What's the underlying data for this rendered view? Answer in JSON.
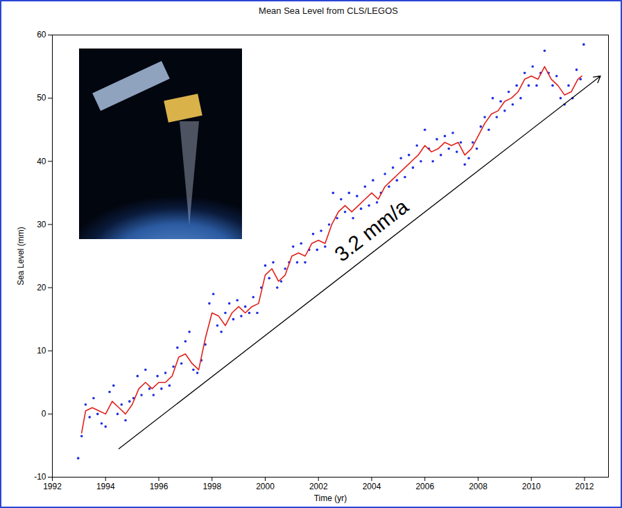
{
  "chart_data": {
    "type": "line",
    "title": "Mean Sea Level from CLS/LEGOS",
    "x_label": "Time (yr)",
    "y_label": "Sea Level (mm)",
    "xlim": [
      1992,
      2012.9
    ],
    "xticks": [
      1992,
      1994,
      1996,
      1998,
      2000,
      2002,
      2004,
      2006,
      2008,
      2010,
      2012
    ],
    "ylim": [
      -10,
      60
    ],
    "yticks": [
      -10,
      0,
      10,
      20,
      30,
      40,
      50,
      60
    ],
    "grid": false,
    "series": [
      {
        "type": "scatter",
        "marker": "dot",
        "color": "#1f2fe0",
        "x": [
          1992.97,
          1993.1,
          1993.25,
          1993.4,
          1993.55,
          1993.7,
          1993.85,
          1994.0,
          1994.15,
          1994.3,
          1994.45,
          1994.6,
          1994.75,
          1994.9,
          1995.05,
          1995.2,
          1995.35,
          1995.5,
          1995.65,
          1995.8,
          1995.95,
          1996.1,
          1996.25,
          1996.4,
          1996.55,
          1996.7,
          1996.85,
          1997.0,
          1997.15,
          1997.3,
          1997.45,
          1997.6,
          1997.75,
          1997.9,
          1998.05,
          1998.2,
          1998.35,
          1998.5,
          1998.65,
          1998.8,
          1998.95,
          1999.1,
          1999.25,
          1999.4,
          1999.55,
          1999.7,
          1999.85,
          2000.0,
          2000.15,
          2000.3,
          2000.45,
          2000.6,
          2000.75,
          2000.9,
          2001.05,
          2001.2,
          2001.35,
          2001.5,
          2001.65,
          2001.8,
          2001.95,
          2002.1,
          2002.25,
          2002.4,
          2002.55,
          2002.7,
          2002.85,
          2003.0,
          2003.15,
          2003.3,
          2003.45,
          2003.6,
          2003.75,
          2003.9,
          2004.05,
          2004.2,
          2004.35,
          2004.5,
          2004.65,
          2004.8,
          2004.95,
          2005.1,
          2005.25,
          2005.4,
          2005.55,
          2005.7,
          2005.85,
          2006.0,
          2006.15,
          2006.3,
          2006.45,
          2006.6,
          2006.75,
          2006.9,
          2007.05,
          2007.2,
          2007.35,
          2007.5,
          2007.65,
          2007.8,
          2007.95,
          2008.1,
          2008.25,
          2008.4,
          2008.55,
          2008.7,
          2008.85,
          2009.0,
          2009.15,
          2009.3,
          2009.45,
          2009.6,
          2009.75,
          2009.9,
          2010.05,
          2010.2,
          2010.35,
          2010.5,
          2010.65,
          2010.8,
          2010.95,
          2011.1,
          2011.25,
          2011.4,
          2011.55,
          2011.7,
          2011.85,
          2011.97
        ],
        "values": [
          -7,
          -3.5,
          1.5,
          -0.5,
          2.5,
          0,
          -1.5,
          -2,
          3.5,
          4.5,
          0,
          1.5,
          -1,
          2,
          2.5,
          6,
          3,
          7,
          4,
          3,
          6,
          4,
          6.5,
          4.5,
          7.5,
          10.5,
          8,
          11.5,
          13,
          7,
          6.5,
          8.5,
          11,
          17.5,
          19,
          14,
          13,
          16,
          17.5,
          15,
          18,
          15.5,
          17,
          16,
          18.5,
          16,
          20,
          23.5,
          21.5,
          24,
          20,
          21,
          23,
          24,
          26.5,
          24,
          27,
          24,
          26,
          28.5,
          26,
          29,
          26.5,
          30,
          35,
          31,
          34,
          32,
          35,
          31,
          34.5,
          32.5,
          36,
          33,
          37,
          33.5,
          35,
          38,
          36,
          39,
          37,
          40.5,
          37.5,
          41,
          39,
          42.5,
          40,
          45,
          42,
          40,
          43.5,
          41,
          44,
          42,
          44.5,
          41.5,
          43,
          39.5,
          40.5,
          43,
          42,
          45.5,
          47,
          45,
          50,
          47,
          49.5,
          48,
          51,
          49,
          52,
          50,
          54,
          52,
          55,
          52,
          54,
          57.5,
          54,
          52,
          53.5,
          50,
          49,
          52,
          50,
          54.5,
          53,
          58.5
        ]
      },
      {
        "type": "line",
        "line_style": "solid",
        "color": "#e0201a",
        "x": [
          1993.1,
          1993.25,
          1993.5,
          1993.75,
          1994.0,
          1994.25,
          1994.5,
          1994.75,
          1995.0,
          1995.25,
          1995.5,
          1995.75,
          1996.0,
          1996.25,
          1996.5,
          1996.75,
          1997.0,
          1997.25,
          1997.5,
          1997.75,
          1998.0,
          1998.25,
          1998.5,
          1998.75,
          1999.0,
          1999.25,
          1999.5,
          1999.75,
          2000.0,
          2000.25,
          2000.5,
          2000.75,
          2001.0,
          2001.25,
          2001.5,
          2001.75,
          2002.0,
          2002.25,
          2002.5,
          2002.75,
          2003.0,
          2003.25,
          2003.5,
          2003.75,
          2004.0,
          2004.25,
          2004.5,
          2004.75,
          2005.0,
          2005.25,
          2005.5,
          2005.75,
          2006.0,
          2006.25,
          2006.5,
          2006.75,
          2007.0,
          2007.25,
          2007.5,
          2007.75,
          2008.0,
          2008.25,
          2008.5,
          2008.75,
          2009.0,
          2009.25,
          2009.5,
          2009.75,
          2010.0,
          2010.25,
          2010.5,
          2010.75,
          2011.0,
          2011.25,
          2011.5,
          2011.75,
          2011.9
        ],
        "values": [
          -3,
          0.5,
          1,
          0.5,
          0,
          2,
          1,
          0,
          1.5,
          4,
          5,
          4,
          5,
          5,
          6,
          9,
          9.5,
          8,
          7,
          12,
          16,
          15.5,
          14,
          16,
          17,
          16,
          17,
          17.5,
          22,
          23,
          21,
          22,
          25,
          25.5,
          25,
          27,
          27.5,
          27,
          30,
          32,
          33,
          32,
          33,
          34,
          35,
          34,
          36,
          37,
          38,
          39,
          40,
          41,
          42.5,
          41.5,
          42,
          43,
          42.5,
          43,
          41,
          42,
          44,
          46,
          47.5,
          48,
          49.5,
          50,
          51,
          53,
          53.5,
          53,
          55,
          53,
          52,
          50.5,
          51,
          53,
          53.5
        ]
      }
    ],
    "annotations": [
      {
        "text": "3.2 mm/a",
        "x": 2004,
        "y": 29,
        "arrow": {
          "x": [
            1994.5,
            2012.6
          ],
          "y": [
            -5.5,
            53.5
          ]
        }
      }
    ]
  }
}
